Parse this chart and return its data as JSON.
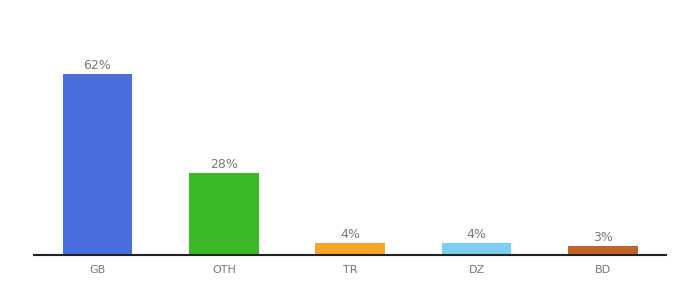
{
  "categories": [
    "GB",
    "OTH",
    "TR",
    "DZ",
    "BD"
  ],
  "values": [
    62,
    28,
    4,
    4,
    3
  ],
  "labels": [
    "62%",
    "28%",
    "4%",
    "4%",
    "3%"
  ],
  "bar_colors": [
    "#4a6fdc",
    "#3ab825",
    "#f5a623",
    "#7ecef4",
    "#c0622a"
  ],
  "ylim": [
    0,
    75
  ],
  "background_color": "#ffffff",
  "label_fontsize": 9,
  "tick_fontsize": 8,
  "bar_width": 0.55
}
